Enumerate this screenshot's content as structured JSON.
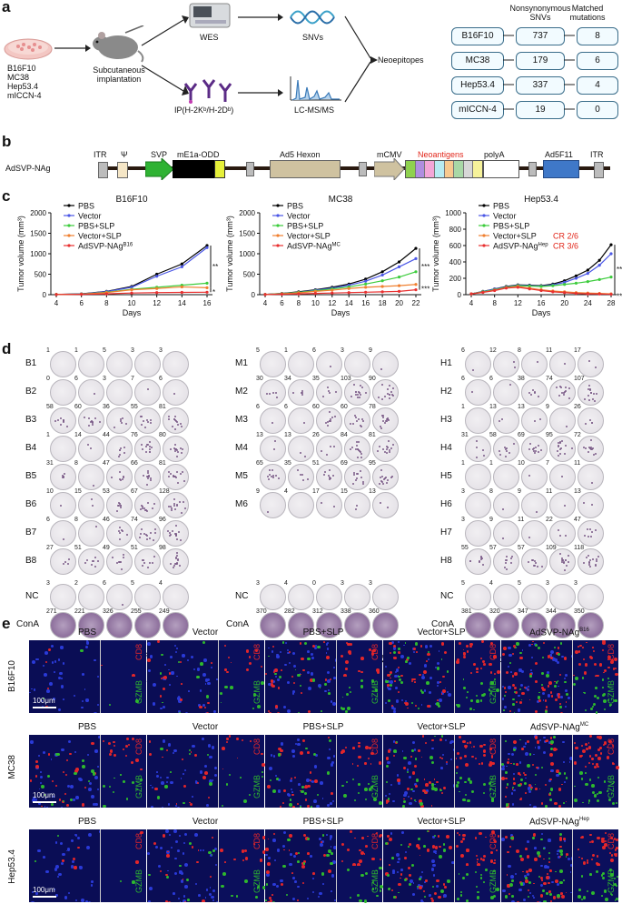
{
  "panel_letters": {
    "a": "a",
    "b": "b",
    "c": "c",
    "d": "d",
    "e": "e"
  },
  "panel_a": {
    "cell_lines": [
      "B16F10",
      "MC38",
      "Hep53.4",
      "mICCN-4"
    ],
    "implantation": "Subcutaneous\nimplantation",
    "wes": "WES",
    "snvs": "SNVs",
    "ip": "IP(H-2Kᵇ/H-2Dᵇ)",
    "lcms": "LC-MS/MS",
    "neoepitopes": "Neoepitopes",
    "col_headers": [
      "Nonsynonymous\nSNVs",
      "Matched\nmutations"
    ],
    "table": [
      {
        "line": "B16F10",
        "snvs": "737",
        "matched": "8"
      },
      {
        "line": "MC38",
        "snvs": "179",
        "matched": "6"
      },
      {
        "line": "Hep53.4",
        "snvs": "337",
        "matched": "4"
      },
      {
        "line": "mICCN-4",
        "snvs": "19",
        "matched": "0"
      }
    ]
  },
  "panel_b": {
    "construct_name": "AdSVP-NAg",
    "elements": {
      "itr1": "ITR",
      "psi": "Ψ",
      "svp": "SVP",
      "me1a": "mE1a-ODD",
      "hexon": "Ad5 Hexon",
      "mcmv": "mCMV",
      "neo": "Neoantigens",
      "polya": "polyA",
      "f11": "Ad5F11",
      "itr2": "ITR"
    },
    "colors": {
      "svp": "#2fb233",
      "me1a": "#000000",
      "me1a_tail": "#e6f03a",
      "hexon": "#cfc2a0",
      "mcmv": "#cfc2a0",
      "f11": "#3f78c8",
      "itr": "#bcbcbc",
      "psi": "#f5e6c6",
      "neo_label": "#e2271b"
    },
    "neo_colors": [
      "#8fd14f",
      "#b08ee0",
      "#f4a6d7",
      "#b7ebf2",
      "#f7c98f",
      "#a8d8a6",
      "#d7d7d7",
      "#f6f29a",
      "#ffffff"
    ]
  },
  "chart_data": [
    {
      "type": "line",
      "title": "B16F10",
      "xlabel": "Days",
      "ylabel": "Tumor volume (mm³)",
      "x": [
        4,
        6,
        8,
        10,
        12,
        14,
        16
      ],
      "ylim": [
        0,
        2000
      ],
      "yticks": [
        "0",
        "500",
        "1000",
        "1500",
        "2000"
      ],
      "xticks": [
        "4",
        "6",
        "8",
        "10",
        "12",
        "14",
        "16"
      ],
      "series": [
        {
          "name": "PBS",
          "color": "#000000",
          "values": [
            5,
            20,
            80,
            200,
            500,
            750,
            1200
          ]
        },
        {
          "name": "Vector",
          "color": "#4b57e6",
          "values": [
            5,
            18,
            75,
            180,
            450,
            680,
            1150
          ]
        },
        {
          "name": "PBS+SLP",
          "color": "#3ccc3c",
          "values": [
            5,
            15,
            60,
            130,
            180,
            230,
            280
          ]
        },
        {
          "name": "Vector+SLP",
          "color": "#f08030",
          "values": [
            5,
            12,
            50,
            120,
            150,
            190,
            170
          ]
        },
        {
          "name": "AdSVP-NAg",
          "sup": "B16",
          "color": "#e83030",
          "values": [
            4,
            8,
            20,
            40,
            50,
            55,
            60
          ]
        }
      ],
      "sig": [
        "**",
        "*"
      ]
    },
    {
      "type": "line",
      "title": "MC38",
      "xlabel": "Days",
      "ylabel": "Tumor volume (mm³)",
      "x": [
        4,
        6,
        8,
        10,
        12,
        14,
        16,
        18,
        20,
        22
      ],
      "ylim": [
        0,
        2000
      ],
      "yticks": [
        "0",
        "500",
        "1000",
        "1500",
        "2000"
      ],
      "xticks": [
        "4",
        "6",
        "8",
        "10",
        "12",
        "14",
        "16",
        "18",
        "20",
        "22"
      ],
      "series": [
        {
          "name": "PBS",
          "color": "#000000",
          "values": [
            5,
            30,
            70,
            120,
            180,
            260,
            380,
            560,
            800,
            1130
          ]
        },
        {
          "name": "Vector",
          "color": "#4b57e6",
          "values": [
            5,
            28,
            60,
            110,
            160,
            230,
            330,
            480,
            680,
            880
          ]
        },
        {
          "name": "PBS+SLP",
          "color": "#3ccc3c",
          "values": [
            5,
            25,
            55,
            95,
            140,
            190,
            260,
            340,
            430,
            560
          ]
        },
        {
          "name": "Vector+SLP",
          "color": "#f08030",
          "values": [
            5,
            20,
            45,
            80,
            110,
            150,
            180,
            200,
            220,
            250
          ]
        },
        {
          "name": "AdSVP-NAg",
          "sup": "MC",
          "color": "#e83030",
          "values": [
            4,
            10,
            20,
            30,
            40,
            50,
            60,
            70,
            80,
            120
          ]
        }
      ],
      "sig": [
        "***",
        "***"
      ]
    },
    {
      "type": "line",
      "title": "Hep53.4",
      "xlabel": "Days",
      "ylabel": "Tumor volume (mm³)",
      "x": [
        4,
        6,
        8,
        10,
        12,
        14,
        16,
        18,
        20,
        22,
        24,
        26,
        28
      ],
      "ylim": [
        0,
        1000
      ],
      "yticks": [
        "0",
        "200",
        "400",
        "600",
        "800",
        "1000"
      ],
      "xticks": [
        "4",
        "8",
        "12",
        "16",
        "20",
        "24",
        "28"
      ],
      "series": [
        {
          "name": "PBS",
          "color": "#000000",
          "values": [
            10,
            40,
            70,
            100,
            120,
            115,
            110,
            130,
            170,
            230,
            300,
            420,
            610
          ]
        },
        {
          "name": "Vector",
          "color": "#4b57e6",
          "values": [
            10,
            38,
            68,
            95,
            115,
            110,
            105,
            120,
            150,
            200,
            260,
            360,
            500
          ]
        },
        {
          "name": "PBS+SLP",
          "color": "#3ccc3c",
          "values": [
            10,
            35,
            60,
            90,
            110,
            105,
            100,
            110,
            125,
            140,
            160,
            185,
            215
          ]
        },
        {
          "name": "Vector+SLP",
          "color": "#f08030",
          "values": [
            10,
            30,
            55,
            85,
            100,
            80,
            60,
            45,
            35,
            25,
            20,
            15,
            10
          ]
        },
        {
          "name": "AdSVP-NAg",
          "sup": "Hep",
          "color": "#e83030",
          "values": [
            10,
            28,
            50,
            80,
            90,
            70,
            50,
            35,
            25,
            15,
            10,
            8,
            5
          ]
        }
      ],
      "cr": [
        "CR 2/6",
        "CR 3/6"
      ],
      "sig": [
        "***",
        "***"
      ]
    }
  ],
  "panel_d": {
    "groups": [
      {
        "rows": [
          {
            "label": "B1",
            "nums": [
              "1",
              "1",
              "5",
              "3",
              "3"
            ]
          },
          {
            "label": "B2",
            "nums": [
              "0",
              "6",
              "3",
              "7",
              "6"
            ]
          },
          {
            "label": "B3",
            "nums": [
              "58",
              "60",
              "36",
              "55",
              "81"
            ]
          },
          {
            "label": "B4",
            "nums": [
              "1",
              "14",
              "44",
              "76",
              "80"
            ]
          },
          {
            "label": "B5",
            "nums": [
              "31",
              "8",
              "47",
              "66",
              "81"
            ]
          },
          {
            "label": "B6",
            "nums": [
              "10",
              "15",
              "53",
              "67",
              "128"
            ]
          },
          {
            "label": "B7",
            "nums": [
              "6",
              "8",
              "46",
              "74",
              "96"
            ]
          },
          {
            "label": "B8",
            "nums": [
              "27",
              "51",
              "49",
              "51",
              "98"
            ]
          }
        ],
        "nc": [
          "3",
          "2",
          "6",
          "5",
          "4"
        ],
        "cona": [
          "271",
          "221",
          "326",
          "255",
          "249"
        ],
        "xlabels": [
          "PBS",
          "Vector",
          "PBS+SLP",
          "Vector+SLP",
          "AdSVP-NAg"
        ],
        "sup": "B16"
      },
      {
        "rows": [
          {
            "label": "M1",
            "nums": [
              "5",
              "1",
              "6",
              "3",
              "9"
            ]
          },
          {
            "label": "M2",
            "nums": [
              "30",
              "34",
              "35",
              "103",
              "90"
            ]
          },
          {
            "label": "M3",
            "nums": [
              "6",
              "6",
              "60",
              "60",
              "78"
            ]
          },
          {
            "label": "M4",
            "nums": [
              "13",
              "13",
              "26",
              "84",
              "81"
            ]
          },
          {
            "label": "M5",
            "nums": [
              "65",
              "35",
              "51",
              "69",
              "95"
            ]
          },
          {
            "label": "M6",
            "nums": [
              "9",
              "4",
              "17",
              "15",
              "13"
            ]
          }
        ],
        "nc": [
          "3",
          "4",
          "0",
          "3",
          "3"
        ],
        "cona": [
          "370",
          "282",
          "312",
          "338",
          "360"
        ],
        "xlabels": [
          "PBS",
          "Vector",
          "PBS+SLP",
          "Vector+SLP",
          "AdSVP-NAg"
        ],
        "sup": "MC"
      },
      {
        "rows": [
          {
            "label": "H1",
            "nums": [
              "6",
              "12",
              "8",
              "11",
              "17"
            ]
          },
          {
            "label": "H2",
            "nums": [
              "6",
              "6",
              "38",
              "74",
              "107"
            ]
          },
          {
            "label": "H3",
            "nums": [
              "1",
              "13",
              "13",
              "9",
              "26"
            ]
          },
          {
            "label": "H4",
            "nums": [
              "31",
              "58",
              "69",
              "95",
              "72"
            ]
          },
          {
            "label": "H5",
            "nums": [
              "1",
              "1",
              "10",
              "7",
              "11"
            ]
          },
          {
            "label": "H6",
            "nums": [
              "3",
              "8",
              "9",
              "11",
              "13"
            ]
          },
          {
            "label": "H7",
            "nums": [
              "3",
              "9",
              "11",
              "22",
              "47"
            ]
          },
          {
            "label": "H8",
            "nums": [
              "55",
              "57",
              "57",
              "109",
              "118"
            ]
          }
        ],
        "nc": [
          "5",
          "4",
          "5",
          "3",
          "3"
        ],
        "cona": [
          "381",
          "320",
          "347",
          "344",
          "350"
        ],
        "xlabels": [
          "PBS",
          "Vector",
          "PBS+SLP",
          "Vector+SLP",
          "AdSVP-NAg"
        ],
        "sup": "Hep"
      }
    ],
    "nc_label": "NC",
    "cona_label": "ConA"
  },
  "panel_e": {
    "rows": [
      {
        "label": "B16F10",
        "last": "AdSVP-NAg",
        "sup": "B16"
      },
      {
        "label": "MC38",
        "last": "AdSVP-NAg",
        "sup": "MC"
      },
      {
        "label": "Hep53.4",
        "last": "AdSVP-NAg",
        "sup": "Hep"
      }
    ],
    "cols": [
      "PBS",
      "Vector",
      "PBS+SLP",
      "Vector+SLP"
    ],
    "cd8": "CD8",
    "gzmb": "GZMB",
    "scale": "100μm",
    "colors": {
      "cd8": "#e3262a",
      "gzmb": "#2eb82e",
      "dapi": "#0a0d55"
    }
  }
}
